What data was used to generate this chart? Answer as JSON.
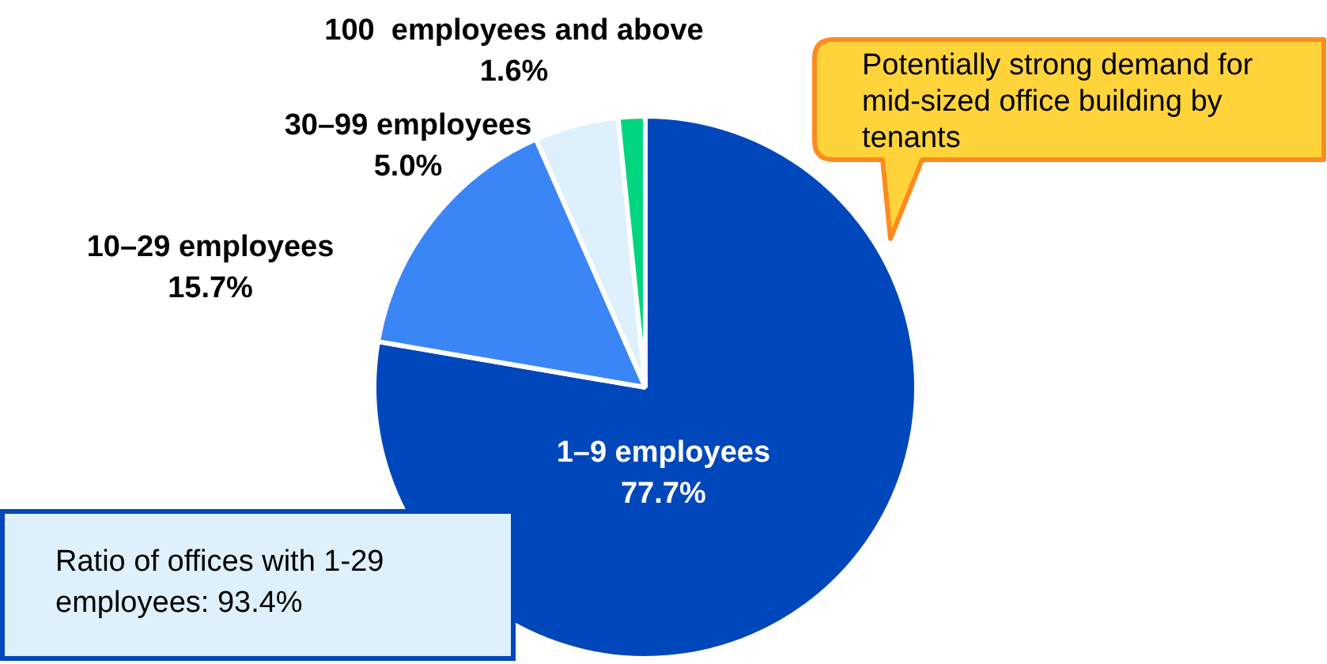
{
  "chart_data": {
    "type": "pie",
    "categories": [
      "1–9 employees",
      "10–29 employees",
      "30–99 employees",
      "100  employees and above"
    ],
    "values": [
      77.7,
      15.7,
      5.0,
      1.6
    ],
    "value_labels": [
      "77.7%",
      "15.7%",
      "5.0%",
      "1.6%"
    ],
    "colors": [
      "#0047bb",
      "#3b86f7",
      "#ddf0fb",
      "#00d67e"
    ],
    "legend": false,
    "annotations": [
      "Potentially strong demand for mid-sized office building by tenants",
      "Ratio of offices with 1-29 employees: 93.4%"
    ]
  }
}
